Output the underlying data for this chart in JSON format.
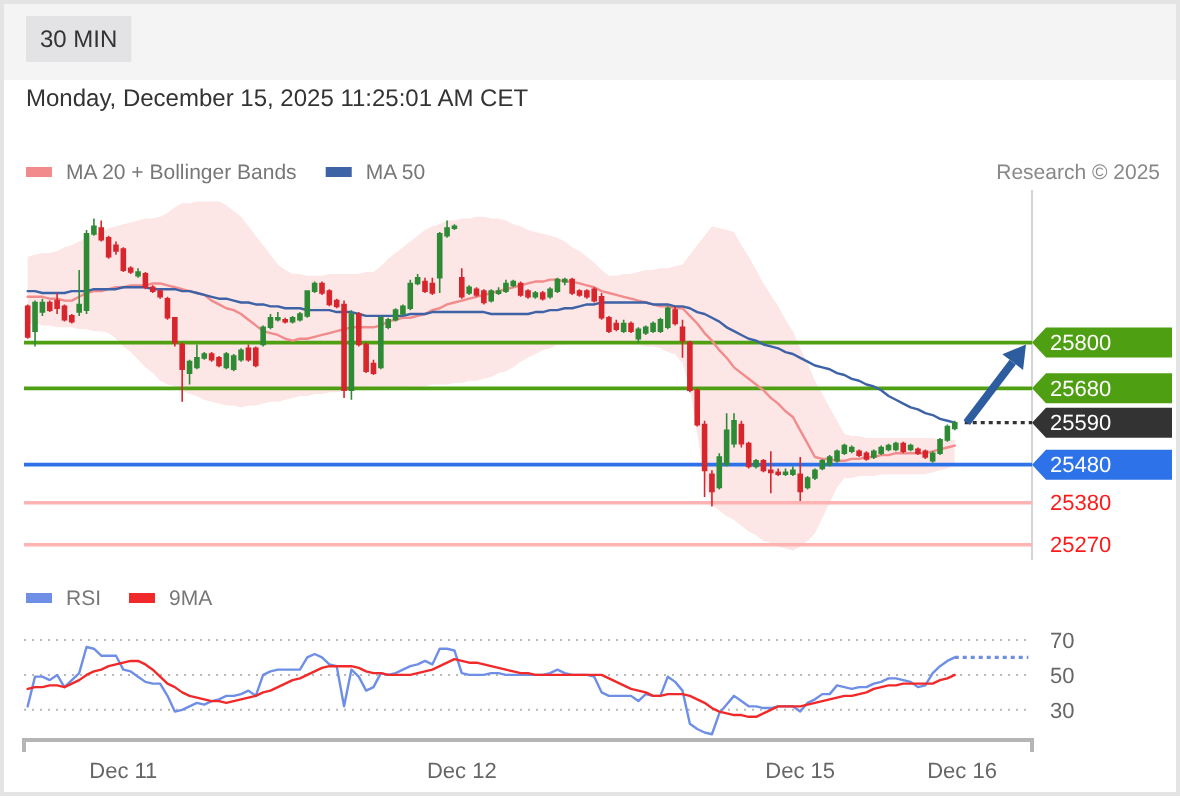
{
  "chart_data": [
    {
      "type": "candlestick",
      "subtitle": "Monday, December 15, 2025 11:25:01 AM CET",
      "annotations": [
        "30 MIN",
        "Research © 2025"
      ],
      "legend": "top left",
      "ylim": [
        25230,
        26200
      ],
      "categories": [
        null,
        null,
        null,
        null,
        null,
        null,
        null,
        null,
        null,
        null,
        null,
        null,
        null,
        "Dec 11",
        null,
        null,
        null,
        null,
        null,
        null,
        null,
        null,
        null,
        null,
        null,
        null,
        null,
        null,
        null,
        null,
        null,
        null,
        null,
        null,
        null,
        null,
        null,
        null,
        null,
        null,
        null,
        null,
        null,
        null,
        null,
        null,
        null,
        null,
        null,
        null,
        null,
        null,
        null,
        null,
        null,
        null,
        null,
        null,
        null,
        "Dec 12",
        null,
        null,
        null,
        null,
        null,
        null,
        null,
        null,
        null,
        null,
        null,
        null,
        null,
        null,
        null,
        null,
        null,
        null,
        null,
        null,
        null,
        null,
        null,
        null,
        null,
        null,
        null,
        null,
        null,
        null,
        null,
        null,
        null,
        null,
        null,
        null,
        null,
        null,
        null,
        null,
        null,
        null,
        null,
        null,
        null,
        "Dec 15",
        null,
        null,
        null,
        null,
        null,
        null,
        null,
        null,
        null,
        null,
        null,
        null,
        null,
        null,
        null,
        null,
        null,
        null,
        null,
        null,
        null,
        "Dec 16",
        null,
        null,
        null,
        null,
        null,
        null,
        null,
        null,
        null
      ],
      "ohlc": [
        [
          25895,
          25900,
          25810,
          25815
        ],
        [
          25830,
          25910,
          25790,
          25905
        ],
        [
          25880,
          25915,
          25870,
          25905
        ],
        [
          25905,
          25910,
          25880,
          25885
        ],
        [
          25910,
          25930,
          25875,
          25890
        ],
        [
          25895,
          25900,
          25855,
          25860
        ],
        [
          25870,
          25875,
          25850,
          25855
        ],
        [
          25880,
          25990,
          25870,
          25900
        ],
        [
          25885,
          26095,
          25875,
          26085
        ],
        [
          26085,
          26125,
          26080,
          26105
        ],
        [
          26100,
          26120,
          26065,
          26070
        ],
        [
          26075,
          26080,
          26020,
          26025
        ],
        [
          26055,
          26065,
          26030,
          26040
        ],
        [
          26045,
          26050,
          25985,
          25990
        ],
        [
          25995,
          26000,
          25980,
          25985
        ],
        [
          25975,
          25995,
          25970,
          25985
        ],
        [
          25980,
          25985,
          25940,
          25945
        ],
        [
          25945,
          25950,
          25930,
          25935
        ],
        [
          25935,
          25940,
          25915,
          25920
        ],
        [
          25915,
          25920,
          25860,
          25865
        ],
        [
          25865,
          25865,
          25790,
          25800
        ],
        [
          25795,
          25800,
          25645,
          25730
        ],
        [
          25720,
          25755,
          25690,
          25750
        ],
        [
          25735,
          25795,
          25730,
          25760
        ],
        [
          25760,
          25775,
          25755,
          25770
        ],
        [
          25770,
          25775,
          25750,
          25755
        ],
        [
          25760,
          25765,
          25735,
          25740
        ],
        [
          25735,
          25775,
          25730,
          25770
        ],
        [
          25730,
          25770,
          25725,
          25765
        ],
        [
          25755,
          25785,
          25750,
          25780
        ],
        [
          25785,
          25795,
          25750,
          25755
        ],
        [
          25785,
          25790,
          25735,
          25740
        ],
        [
          25795,
          25845,
          25790,
          25840
        ],
        [
          25840,
          25875,
          25835,
          25865
        ],
        [
          25860,
          25880,
          25855,
          25865
        ],
        [
          25860,
          25865,
          25850,
          25855
        ],
        [
          25855,
          25870,
          25850,
          25865
        ],
        [
          25860,
          25880,
          25855,
          25875
        ],
        [
          25870,
          25935,
          25865,
          25935
        ],
        [
          25935,
          25960,
          25930,
          25955
        ],
        [
          25955,
          25960,
          25925,
          25930
        ],
        [
          25935,
          25940,
          25895,
          25900
        ],
        [
          25910,
          25915,
          25890,
          25895
        ],
        [
          25900,
          25910,
          25655,
          25675
        ],
        [
          25675,
          25885,
          25650,
          25875
        ],
        [
          25875,
          25880,
          25790,
          25795
        ],
        [
          25795,
          25800,
          25720,
          25725
        ],
        [
          25745,
          25755,
          25715,
          25720
        ],
        [
          25735,
          25870,
          25730,
          25865
        ],
        [
          25840,
          25865,
          25835,
          25860
        ],
        [
          25860,
          25890,
          25855,
          25885
        ],
        [
          25875,
          25900,
          25870,
          25895
        ],
        [
          25890,
          25965,
          25885,
          25955
        ],
        [
          25955,
          25980,
          25950,
          25970
        ],
        [
          25960,
          25970,
          25930,
          25935
        ],
        [
          25955,
          25970,
          25925,
          25930
        ],
        [
          25970,
          26090,
          25930,
          26085
        ],
        [
          26080,
          26120,
          26075,
          26100
        ],
        [
          26100,
          26110,
          26095,
          26105
        ],
        [
          25970,
          25995,
          25915,
          25920
        ],
        [
          25930,
          25950,
          25925,
          25945
        ],
        [
          25940,
          25945,
          25920,
          25925
        ],
        [
          25935,
          25940,
          25900,
          25905
        ],
        [
          25910,
          25940,
          25905,
          25935
        ],
        [
          25930,
          25945,
          25925,
          25935
        ],
        [
          25935,
          25965,
          25930,
          25955
        ],
        [
          25950,
          25965,
          25945,
          25960
        ],
        [
          25955,
          25960,
          25920,
          25925
        ],
        [
          25935,
          25940,
          25915,
          25920
        ],
        [
          25920,
          25935,
          25915,
          25930
        ],
        [
          25930,
          25935,
          25910,
          25915
        ],
        [
          25920,
          25945,
          25915,
          25940
        ],
        [
          25935,
          25970,
          25930,
          25965
        ],
        [
          25960,
          25970,
          25950,
          25965
        ],
        [
          25965,
          25970,
          25925,
          25930
        ],
        [
          25935,
          25940,
          25920,
          25925
        ],
        [
          25935,
          25940,
          25915,
          25920
        ],
        [
          25940,
          25945,
          25905,
          25910
        ],
        [
          25920,
          25930,
          25860,
          25865
        ],
        [
          25865,
          25870,
          25825,
          25830
        ],
        [
          25850,
          25860,
          25830,
          25835
        ],
        [
          25830,
          25860,
          25825,
          25850
        ],
        [
          25850,
          25855,
          25825,
          25830
        ],
        [
          25810,
          25840,
          25800,
          25835
        ],
        [
          25825,
          25845,
          25820,
          25840
        ],
        [
          25830,
          25855,
          25825,
          25850
        ],
        [
          25830,
          25865,
          25825,
          25860
        ],
        [
          25840,
          25895,
          25835,
          25890
        ],
        [
          25885,
          25895,
          25845,
          25850
        ],
        [
          25840,
          25860,
          25760,
          25805
        ],
        [
          25800,
          25805,
          25670,
          25675
        ],
        [
          25675,
          25680,
          25580,
          25585
        ],
        [
          25585,
          25595,
          25395,
          25465
        ],
        [
          25455,
          25465,
          25370,
          25410
        ],
        [
          25420,
          25510,
          25415,
          25500
        ],
        [
          25480,
          25615,
          25475,
          25570
        ],
        [
          25535,
          25615,
          25525,
          25595
        ],
        [
          25585,
          25595,
          25525,
          25535
        ],
        [
          25535,
          25540,
          25470,
          25475
        ],
        [
          25475,
          25495,
          25470,
          25490
        ],
        [
          25490,
          25495,
          25460,
          25465
        ],
        [
          25465,
          25515,
          25405,
          25460
        ],
        [
          25460,
          25470,
          25450,
          25455
        ],
        [
          25455,
          25470,
          25450,
          25460
        ],
        [
          25455,
          25475,
          25450,
          25465
        ],
        [
          25455,
          25500,
          25385,
          25410
        ],
        [
          25420,
          25450,
          25415,
          25445
        ],
        [
          25445,
          25470,
          25440,
          25465
        ],
        [
          25470,
          25495,
          25465,
          25490
        ],
        [
          25480,
          25505,
          25475,
          25500
        ],
        [
          25490,
          25520,
          25485,
          25515
        ],
        [
          25510,
          25535,
          25505,
          25530
        ],
        [
          25515,
          25530,
          25510,
          25525
        ],
        [
          25515,
          25520,
          25500,
          25505
        ],
        [
          25510,
          25515,
          25490,
          25495
        ],
        [
          25500,
          25520,
          25495,
          25515
        ],
        [
          25510,
          25530,
          25505,
          25525
        ],
        [
          25520,
          25535,
          25515,
          25530
        ],
        [
          25520,
          25540,
          25515,
          25535
        ],
        [
          25535,
          25540,
          25510,
          25515
        ],
        [
          25520,
          25535,
          25515,
          25530
        ],
        [
          25520,
          25525,
          25505,
          25510
        ],
        [
          25515,
          25520,
          25495,
          25500
        ],
        [
          25490,
          25515,
          25485,
          25510
        ],
        [
          25510,
          25550,
          25505,
          25545
        ],
        [
          25545,
          25585,
          25540,
          25580
        ],
        [
          25575,
          25595,
          25570,
          25590
        ],
        null,
        null,
        null,
        null,
        null,
        null,
        null,
        null,
        null,
        null
      ],
      "series": [
        {
          "name": "MA 20 + Bollinger Bands",
          "type": "line",
          "color": "#f28b8b",
          "values": [
            25920,
            25920,
            25920,
            25915,
            25915,
            25910,
            25910,
            25920,
            25930,
            25935,
            25935,
            25940,
            25945,
            25945,
            25950,
            25950,
            25950,
            25955,
            25955,
            25950,
            25945,
            25940,
            25935,
            25930,
            25925,
            25910,
            25900,
            25890,
            25885,
            25875,
            25860,
            25845,
            25830,
            25825,
            25820,
            25810,
            25805,
            25810,
            25810,
            25815,
            25820,
            25825,
            25830,
            25835,
            25840,
            25840,
            25840,
            25840,
            25845,
            25855,
            25860,
            25865,
            25865,
            25870,
            25875,
            25885,
            25890,
            25900,
            25905,
            25910,
            25915,
            25920,
            25925,
            25930,
            25935,
            25940,
            25945,
            25950,
            25955,
            25960,
            25960,
            25965,
            25965,
            25960,
            25960,
            25955,
            25950,
            25945,
            25935,
            25930,
            25925,
            25920,
            25915,
            25910,
            25905,
            25900,
            25895,
            25895,
            25890,
            25890,
            25870,
            25850,
            25825,
            25805,
            25780,
            25760,
            25735,
            25720,
            25705,
            25690,
            25675,
            25655,
            25640,
            25620,
            25605,
            25570,
            25535,
            25500,
            25495,
            25495,
            25490,
            25490,
            25495,
            25495,
            25500,
            25500,
            25505,
            25505,
            25510,
            25510,
            25510,
            25510,
            25510,
            25515,
            25520,
            25525,
            25530,
            null,
            null,
            null,
            null,
            null,
            null,
            null,
            null,
            null,
            null
          ],
          "lower": [
            25850,
            25850,
            25845,
            25845,
            25840,
            25840,
            25840,
            25835,
            25835,
            25830,
            25830,
            25825,
            25810,
            25790,
            25775,
            25755,
            25735,
            25720,
            25700,
            25690,
            25685,
            25675,
            25665,
            25660,
            25650,
            25645,
            25640,
            25635,
            25635,
            25630,
            25635,
            25635,
            25640,
            25645,
            25645,
            25650,
            25655,
            25660,
            25660,
            25665,
            25665,
            25670,
            25670,
            25675,
            25675,
            25675,
            25675,
            25675,
            25675,
            25680,
            25680,
            25680,
            25685,
            25685,
            25685,
            25690,
            25690,
            25690,
            25695,
            25695,
            25700,
            25700,
            25705,
            25710,
            25720,
            25725,
            25735,
            25750,
            25760,
            25770,
            25780,
            25785,
            25795,
            25795,
            25800,
            25800,
            25800,
            25800,
            25800,
            25800,
            25800,
            25800,
            25795,
            25795,
            25790,
            25790,
            25785,
            25775,
            25770,
            25745,
            25680,
            25560,
            25440,
            25375,
            25360,
            25345,
            25335,
            25320,
            25305,
            25295,
            25280,
            25275,
            25265,
            25260,
            25255,
            25265,
            25280,
            25300,
            25340,
            25380,
            25420,
            25445,
            25445,
            25450,
            25450,
            25450,
            25455,
            25455,
            25455,
            25455,
            25455,
            25455,
            25455,
            25460,
            25465,
            25470,
            25480,
            null,
            null,
            null,
            null,
            null,
            null,
            null,
            null,
            null,
            null
          ],
          "upper": [
            26025,
            26030,
            26035,
            26035,
            26040,
            26050,
            26055,
            26065,
            26075,
            26085,
            26090,
            26100,
            26105,
            26110,
            26115,
            26120,
            26125,
            26125,
            26130,
            26140,
            26155,
            26165,
            26165,
            26170,
            26170,
            26170,
            26170,
            26160,
            26145,
            26130,
            26105,
            26080,
            26055,
            26030,
            26005,
            25990,
            25980,
            25980,
            25975,
            25975,
            25975,
            25980,
            25980,
            25980,
            25980,
            25980,
            25985,
            25985,
            26000,
            26020,
            26035,
            26050,
            26065,
            26080,
            26095,
            26105,
            26110,
            26120,
            26120,
            26125,
            26125,
            26130,
            26130,
            26125,
            26125,
            26120,
            26110,
            26105,
            26095,
            26090,
            26085,
            26080,
            26075,
            26065,
            26050,
            26040,
            26025,
            26010,
            25990,
            25975,
            25975,
            25980,
            25980,
            25985,
            25990,
            25990,
            25995,
            25995,
            26000,
            26005,
            26030,
            26055,
            26080,
            26105,
            26100,
            26095,
            26090,
            26055,
            26025,
            25990,
            25955,
            25925,
            25895,
            25860,
            25830,
            25785,
            25745,
            25700,
            25665,
            25630,
            25595,
            25560,
            25555,
            25555,
            25550,
            25550,
            25550,
            25550,
            25550,
            25550,
            25550,
            25550,
            25550,
            25550,
            25545,
            25545,
            25545,
            null,
            null,
            null,
            null,
            null,
            null,
            null,
            null,
            null,
            null
          ]
        },
        {
          "name": "MA 50",
          "type": "line",
          "color": "#3d62a6",
          "values": [
            25935,
            25935,
            25930,
            25930,
            25930,
            25930,
            25935,
            25935,
            25935,
            25940,
            25940,
            25940,
            25940,
            25945,
            25945,
            25945,
            25945,
            25940,
            25940,
            25940,
            25940,
            25935,
            25935,
            25930,
            25925,
            25920,
            25915,
            25915,
            25910,
            25905,
            25905,
            25900,
            25900,
            25895,
            25895,
            25890,
            25890,
            25890,
            25885,
            25885,
            25885,
            25885,
            25880,
            25880,
            25880,
            25875,
            25870,
            25870,
            25870,
            25870,
            25870,
            25870,
            25875,
            25875,
            25875,
            25880,
            25880,
            25880,
            25880,
            25880,
            25880,
            25880,
            25880,
            25875,
            25875,
            25875,
            25875,
            25875,
            25875,
            25880,
            25880,
            25885,
            25885,
            25890,
            25890,
            25895,
            25900,
            25900,
            25905,
            25905,
            25905,
            25905,
            25905,
            25905,
            25905,
            25900,
            25900,
            25900,
            25895,
            25895,
            25890,
            25880,
            25875,
            25865,
            25855,
            25840,
            25830,
            25820,
            25810,
            25805,
            25795,
            25790,
            25785,
            25775,
            25770,
            25760,
            25750,
            25740,
            25735,
            25730,
            25720,
            25715,
            25705,
            25700,
            25690,
            25685,
            25675,
            25660,
            25650,
            25640,
            25630,
            25625,
            25615,
            25610,
            25600,
            25595,
            25590,
            null,
            null,
            null,
            null,
            null,
            null,
            null,
            null,
            null,
            null
          ]
        }
      ],
      "ref_lines": [
        {
          "axis": "y",
          "value": 25800,
          "label": "25800",
          "color": "#4f9f12"
        },
        {
          "axis": "y",
          "value": 25680,
          "label": "25680",
          "color": "#4f9f12"
        },
        {
          "axis": "y",
          "value": 25590,
          "label": "25590",
          "color": "#333333",
          "line_style": "dotted"
        },
        {
          "axis": "y",
          "value": 25480,
          "label": "25480",
          "color": "#2d72e8"
        },
        {
          "axis": "y",
          "value": 25380,
          "label": "25380",
          "color": "#ffb3b3"
        },
        {
          "axis": "y",
          "value": 25270,
          "label": "25270",
          "color": "#ffb3b3"
        }
      ]
    },
    {
      "type": "line",
      "legend": "top left",
      "grid": "y",
      "ylim": [
        15,
        70
      ],
      "yticks": [
        30,
        50,
        70
      ],
      "categories": [
        null,
        null,
        null,
        null,
        null,
        null,
        null,
        null,
        null,
        null,
        null,
        null,
        null,
        null,
        null,
        null,
        null,
        null,
        null,
        null,
        null,
        null,
        null,
        null,
        null,
        null,
        null,
        null,
        null,
        null,
        null,
        null,
        null,
        null,
        null,
        null,
        null,
        null,
        null,
        null,
        null,
        null,
        null,
        null,
        null,
        null,
        null,
        null,
        null,
        null,
        null,
        null,
        null,
        null,
        null,
        null,
        null,
        null,
        null,
        null,
        null,
        null,
        null,
        null,
        null,
        null,
        null,
        null,
        null,
        null,
        null,
        null,
        null,
        null,
        null,
        null,
        null,
        null,
        null,
        null,
        null,
        null,
        null,
        null,
        null,
        null,
        null,
        null,
        null,
        null,
        null,
        null,
        null,
        null,
        null,
        null,
        null,
        null,
        null,
        null,
        null,
        null,
        null,
        null,
        null,
        null,
        null,
        null,
        null,
        null,
        null,
        null,
        null,
        null,
        null,
        null,
        null,
        null,
        null,
        null,
        null,
        null,
        null,
        null,
        null,
        null,
        null,
        null,
        null,
        null,
        null,
        null,
        null,
        null,
        null,
        null,
        null
      ],
      "series": [
        {
          "name": "RSI",
          "color": "#6f8fe6",
          "values": [
            32,
            49,
            49,
            47,
            50,
            43,
            47,
            51,
            66,
            65,
            61,
            61,
            61,
            53,
            52,
            49,
            46,
            45,
            45,
            38,
            29,
            30,
            32,
            34,
            33,
            35,
            36,
            38,
            38,
            39,
            41,
            38,
            50,
            52,
            53,
            53,
            53,
            53,
            60,
            62,
            60,
            56,
            55,
            32,
            53,
            49,
            41,
            43,
            51,
            50,
            51,
            53,
            55,
            56,
            58,
            56,
            65,
            65,
            64,
            51,
            50,
            50,
            50,
            51,
            51,
            50,
            50,
            50,
            50,
            50,
            50,
            51,
            53,
            51,
            50,
            50,
            50,
            49,
            40,
            38,
            38,
            38,
            38,
            35,
            39,
            38,
            38,
            49,
            46,
            41,
            22,
            19,
            17,
            16,
            28,
            33,
            38,
            35,
            32,
            32,
            31,
            31,
            32,
            32,
            32,
            29,
            34,
            36,
            39,
            39,
            44,
            43,
            42,
            43,
            43,
            45,
            46,
            48,
            48,
            47,
            46,
            43,
            44,
            51,
            55,
            58,
            60,
            null,
            null,
            null,
            null,
            null,
            null,
            null,
            null,
            null,
            null
          ]
        },
        {
          "name": "9MA",
          "color": "#f02a2a",
          "values": [
            42,
            43,
            43,
            44,
            44,
            43,
            45,
            47,
            50,
            52,
            53,
            55,
            56,
            57,
            58,
            58,
            56,
            53,
            49,
            45,
            43,
            40,
            38,
            37,
            36,
            35,
            35,
            34,
            35,
            36,
            37,
            38,
            40,
            41,
            43,
            45,
            47,
            48,
            50,
            52,
            54,
            55,
            55,
            55,
            55,
            54,
            52,
            51,
            51,
            50,
            50,
            50,
            50,
            51,
            52,
            53,
            55,
            57,
            59,
            58,
            57,
            57,
            56,
            55,
            54,
            53,
            52,
            51,
            51,
            50,
            50,
            50,
            50,
            50,
            50,
            50,
            50,
            50,
            50,
            48,
            46,
            44,
            42,
            41,
            40,
            38,
            38,
            39,
            39,
            39,
            38,
            36,
            34,
            31,
            29,
            28,
            27,
            27,
            26,
            26,
            28,
            30,
            32,
            32,
            32,
            32,
            33,
            34,
            35,
            36,
            37,
            38,
            38,
            39,
            40,
            42,
            43,
            44,
            44,
            45,
            45,
            45,
            45,
            45,
            47,
            48,
            50,
            null,
            null,
            null,
            null,
            null,
            null,
            null,
            null,
            null,
            null
          ]
        },
        {
          "type": "line",
          "color": "#6f8fe6",
          "line_style": "dotted",
          "values": [
            null,
            null,
            null,
            null,
            null,
            null,
            null,
            null,
            null,
            null,
            null,
            null,
            null,
            null,
            null,
            null,
            null,
            null,
            null,
            null,
            null,
            null,
            null,
            null,
            null,
            null,
            null,
            null,
            null,
            null,
            null,
            null,
            null,
            null,
            null,
            null,
            null,
            null,
            null,
            null,
            null,
            null,
            null,
            null,
            null,
            null,
            null,
            null,
            null,
            null,
            null,
            null,
            null,
            null,
            null,
            null,
            null,
            null,
            null,
            null,
            null,
            null,
            null,
            null,
            null,
            null,
            null,
            null,
            null,
            null,
            null,
            null,
            null,
            null,
            null,
            null,
            null,
            null,
            null,
            null,
            null,
            null,
            null,
            null,
            null,
            null,
            null,
            null,
            null,
            null,
            null,
            null,
            null,
            null,
            null,
            null,
            null,
            null,
            null,
            null,
            null,
            null,
            null,
            null,
            null,
            null,
            null,
            null,
            null,
            null,
            null,
            null,
            null,
            null,
            null,
            null,
            null,
            null,
            null,
            null,
            null,
            null,
            null,
            null,
            null,
            null,
            60,
            60,
            60,
            60,
            60,
            60,
            60,
            60,
            60,
            60,
            60
          ]
        }
      ]
    }
  ]
}
